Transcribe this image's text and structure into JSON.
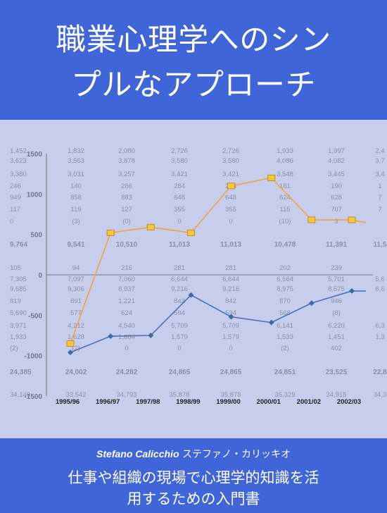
{
  "cover": {
    "title_line1": "職業心理学へのシン",
    "title_line2": "プルなアプローチ",
    "author_latin": "Stefano Calicchio",
    "author_kana": "ステファノ・カリッキオ",
    "subtitle_line1": "仕事や組織の現場で心理学的知識を活",
    "subtitle_line2": "用するための入門書"
  },
  "colors": {
    "band": "#3f65d8",
    "panel": "#c7cdec",
    "orange_series": "#f5a23a",
    "blue_series": "#4a74b0"
  },
  "chart_data": {
    "type": "line",
    "categories": [
      "1995/96",
      "1996/97",
      "1997/98",
      "1998/99",
      "1999/00",
      "2000/01",
      "2001/02",
      "2002/03"
    ],
    "ylim": [
      -1500,
      1500
    ],
    "y_ticks": [
      "1500",
      "1000",
      "500",
      "0",
      "-500",
      "-1000",
      "-1500"
    ],
    "series": [
      {
        "color": "#f5a23a",
        "marker": "square",
        "values": [
          -850,
          520,
          590,
          520,
          1100,
          1200,
          680,
          680
        ]
      },
      {
        "color": "#4a74b0",
        "marker": "diamond",
        "values": [
          -960,
          -760,
          -750,
          -250,
          -520,
          -590,
          -350,
          -200
        ]
      }
    ]
  },
  "table_bg": {
    "columns": [
      [
        "1,452",
        "3,623",
        "3,380",
        "246",
        "949",
        "117",
        "0",
        "9,764",
        "105",
        "7,305",
        "9,685",
        "819",
        "5,690",
        "3,971",
        "1,933",
        "(2)",
        "24,385",
        "34,149"
      ],
      [
        "1,832",
        "3,563",
        "3,031",
        "140",
        "858",
        "119",
        "(3)",
        "9,541",
        "94",
        "7,097",
        "9,306",
        "891",
        "577",
        "4,212",
        "1,628",
        "(2)",
        "24,002",
        "33,542"
      ],
      [
        "2,080",
        "3,878",
        "3,257",
        "286",
        "883",
        "127",
        "(0)",
        "10,510",
        "216",
        "7,060",
        "8,937",
        "1,221",
        "624",
        "4,540",
        "1,684",
        "0",
        "24,282",
        "34,793"
      ],
      [
        "2,726",
        "3,580",
        "3,421",
        "284",
        "648",
        "355",
        "0",
        "11,013",
        "281",
        "6,644",
        "9,216",
        "842",
        "594",
        "5,709",
        "1,579",
        "0",
        "24,865",
        "35,878"
      ],
      [
        "2,726",
        "3,580",
        "3,421",
        "284",
        "648",
        "355",
        "0",
        "11,013",
        "281",
        "6,644",
        "9,216",
        "842",
        "594",
        "5,709",
        "1,579",
        "0",
        "24,865",
        "35,878"
      ],
      [
        "1,933",
        "4,086",
        "3,548",
        "181",
        "624",
        "115",
        "(10)",
        "10,478",
        "202",
        "6,564",
        "8,975",
        "870",
        "568",
        "6,141",
        "1,533",
        "(2)",
        "24,851",
        "35,329"
      ],
      [
        "1,997",
        "4,082",
        "3,445",
        "190",
        "628",
        "707",
        "3",
        "11,391",
        "239",
        "5,701",
        "8,575",
        "946",
        "(8)",
        "6,220",
        "1,451",
        "402",
        "23,525",
        "34,915"
      ],
      [
        "2,4",
        "3,7",
        "3,4",
        "1",
        "7",
        "7",
        "",
        "11,5",
        "",
        "5,6",
        "8,6",
        "",
        "",
        "6,3",
        "1,3",
        "",
        "22,8",
        "34,3"
      ]
    ]
  }
}
